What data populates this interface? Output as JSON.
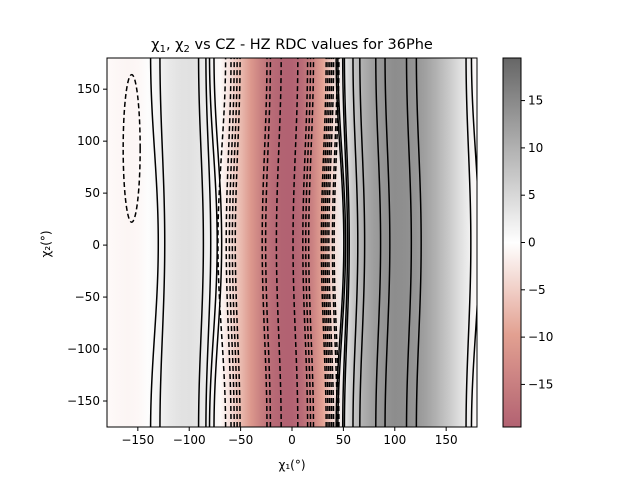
{
  "chart_data": {
    "type": "heatmap",
    "title_parts": [
      "χ",
      "1",
      ", χ",
      "2",
      " vs CZ - HZ RDC values for 36Phe"
    ],
    "xlabel": "χ₁(°)",
    "ylabel": "χ₂(°)",
    "xlim": [
      -180,
      180
    ],
    "ylim": [
      -175,
      180
    ],
    "x_ticks": [
      -150,
      -100,
      -50,
      0,
      50,
      100,
      150
    ],
    "y_ticks": [
      -150,
      -100,
      -50,
      0,
      50,
      100,
      150
    ],
    "x_tick_labels": [
      "−150",
      "−100",
      "−50",
      "0",
      "50",
      "100",
      "150"
    ],
    "y_tick_labels": [
      "−150",
      "−100",
      "−50",
      "0",
      "50",
      "100",
      "150"
    ],
    "colorbar": {
      "range": [
        -19.5,
        19.5
      ],
      "ticks": [
        -15,
        -10,
        -5,
        0,
        5,
        10,
        15
      ],
      "tick_labels": [
        "−15",
        "−10",
        "−5",
        "0",
        "5",
        "10",
        "15"
      ]
    },
    "profile_chi1": [
      -180,
      -170,
      -160,
      -150,
      -140,
      -130,
      -120,
      -110,
      -100,
      -90,
      -80,
      -70,
      -60,
      -50,
      -40,
      -30,
      -20,
      -10,
      0,
      10,
      20,
      30,
      40,
      50,
      55,
      60,
      70,
      80,
      90,
      100,
      110,
      120,
      130,
      140,
      150,
      160,
      170,
      180
    ],
    "profile_rdc": [
      -0.5,
      -0.8,
      -1.0,
      -0.8,
      0.2,
      1.5,
      2.8,
      3.6,
      3.8,
      3.2,
      1.8,
      -0.5,
      -3.5,
      -7.0,
      -11.0,
      -15.0,
      -18.0,
      -19.4,
      -19.5,
      -18.0,
      -14.5,
      -9.5,
      -4.0,
      2.0,
      5.0,
      7.5,
      10.5,
      12.5,
      13.8,
      14.5,
      14.3,
      13.5,
      12.0,
      10.0,
      7.5,
      5.0,
      2.5,
      -0.5
    ],
    "colors": {
      "negative_deep": "#b26272",
      "negative_mid": "#e2a091",
      "zero": "#ffffff",
      "positive_deep": "#666666",
      "contour": "#000000"
    }
  }
}
